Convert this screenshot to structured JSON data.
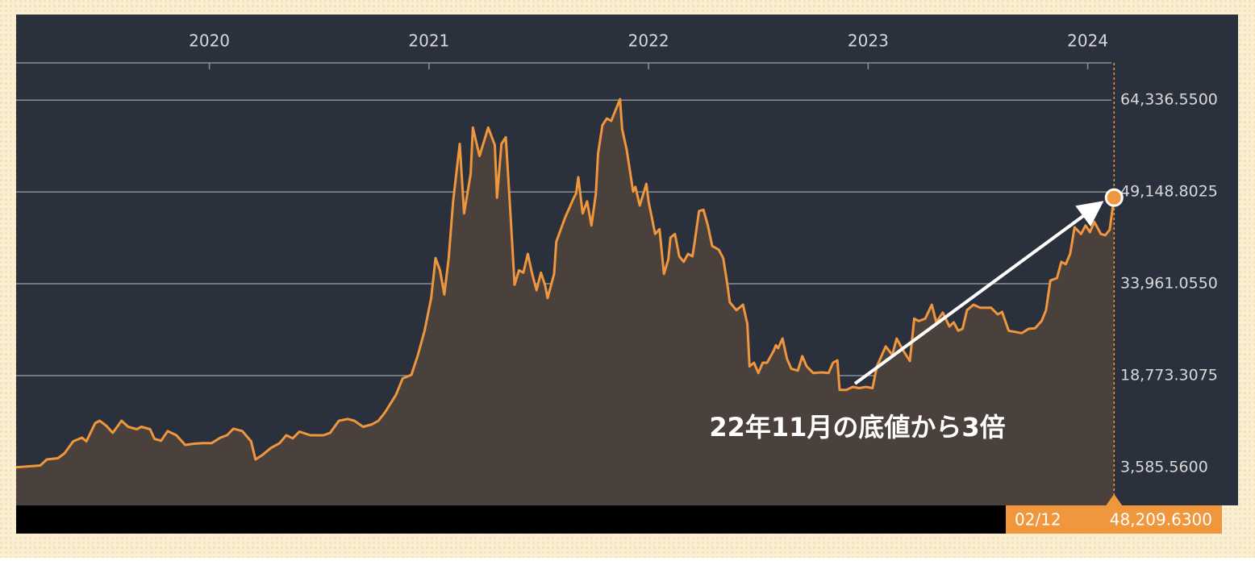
{
  "chart_data": {
    "type": "area",
    "annotation": "22年11月の底値から3倍",
    "color": "#f0963c",
    "fill_color": "#4a413c",
    "background": "#2b313c",
    "grid": true,
    "xlim": [
      2019.12,
      2024.13
    ],
    "xticks": [
      2020,
      2021,
      2022,
      2023,
      2024
    ],
    "ylim": [
      -2700,
      78500
    ],
    "yticks": [
      {
        "value": 3585.56,
        "label": "3,585.5600"
      },
      {
        "value": 18773.3075,
        "label": "18,773.3075"
      },
      {
        "value": 33961.055,
        "label": "33,961.0550"
      },
      {
        "value": 49148.8025,
        "label": "49,148.8025"
      },
      {
        "value": 64336.55,
        "label": "64,336.5500"
      }
    ],
    "last_point": {
      "date": "02/12",
      "value": 48209.63,
      "value_label": "48,209.6300"
    },
    "x": [
      2019.12,
      2019.23,
      2019.26,
      2019.31,
      2019.34,
      2019.38,
      2019.42,
      2019.44,
      2019.48,
      2019.5,
      2019.53,
      2019.56,
      2019.6,
      2019.63,
      2019.67,
      2019.69,
      2019.73,
      2019.75,
      2019.78,
      2019.81,
      2019.85,
      2019.89,
      2019.93,
      2019.97,
      2020.01,
      2020.05,
      2020.08,
      2020.11,
      2020.15,
      2020.19,
      2020.21,
      2020.24,
      2020.28,
      2020.32,
      2020.35,
      2020.38,
      2020.41,
      2020.46,
      2020.52,
      2020.55,
      2020.59,
      2020.63,
      2020.66,
      2020.7,
      2020.74,
      2020.77,
      2020.8,
      2020.85,
      2020.88,
      2020.92,
      2020.95,
      2020.98,
      2021.01,
      2021.03,
      2021.05,
      2021.07,
      2021.09,
      2021.11,
      2021.14,
      2021.16,
      2021.19,
      2021.2,
      2021.23,
      2021.27,
      2021.3,
      2021.31,
      2021.33,
      2021.35,
      2021.37,
      2021.39,
      2021.41,
      2021.43,
      2021.45,
      2021.47,
      2021.49,
      2021.51,
      2021.53,
      2021.54,
      2021.57,
      2021.58,
      2021.62,
      2021.66,
      2021.67,
      2021.68,
      2021.7,
      2021.72,
      2021.74,
      2021.76,
      2021.77,
      2021.79,
      2021.81,
      2021.83,
      2021.87,
      2021.88,
      2021.9,
      2021.93,
      2021.94,
      2021.96,
      2021.99,
      2022.0,
      2022.03,
      2022.05,
      2022.07,
      2022.09,
      2022.1,
      2022.12,
      2022.14,
      2022.16,
      2022.18,
      2022.2,
      2022.21,
      2022.23,
      2022.25,
      2022.27,
      2022.29,
      2022.32,
      2022.34,
      2022.36,
      2022.37,
      2022.4,
      2022.43,
      2022.45,
      2022.46,
      2022.48,
      2022.5,
      2022.52,
      2022.54,
      2022.57,
      2022.58,
      2022.59,
      2022.61,
      2022.63,
      2022.65,
      2022.68,
      2022.7,
      2022.72,
      2022.75,
      2022.79,
      2022.82,
      2022.84,
      2022.86,
      2022.87,
      2022.9,
      2022.93,
      2022.96,
      2022.99,
      2023.02,
      2023.04,
      2023.08,
      2023.11,
      2023.13,
      2023.16,
      2023.19,
      2023.21,
      2023.23,
      2023.26,
      2023.29,
      2023.31,
      2023.34,
      2023.37,
      2023.39,
      2023.41,
      2023.43,
      2023.45,
      2023.48,
      2023.51,
      2023.56,
      2023.59,
      2023.61,
      2023.64,
      2023.67,
      2023.7,
      2023.73,
      2023.76,
      2023.79,
      2023.81,
      2023.83,
      2023.86,
      2023.88,
      2023.9,
      2023.92,
      2023.94,
      2023.97,
      2023.99,
      2024.01,
      2024.03,
      2024.06,
      2024.08,
      2024.1,
      2024.12
    ],
    "series": [
      {
        "values": [
          3600,
          3900,
          4900,
          5100,
          5900,
          7900,
          8500,
          7900,
          10900,
          11300,
          10500,
          9300,
          11300,
          10300,
          9900,
          10300,
          9900,
          8300,
          8000,
          9600,
          8900,
          7300,
          7500,
          7600,
          7600,
          8500,
          8900,
          10000,
          9600,
          7900,
          4900,
          5600,
          6800,
          7600,
          8900,
          8400,
          9500,
          8900,
          8900,
          9300,
          11300,
          11600,
          11300,
          10300,
          10700,
          11300,
          12700,
          15600,
          18300,
          18900,
          22200,
          26200,
          31600,
          38200,
          36200,
          32200,
          38200,
          47600,
          57100,
          45600,
          52200,
          59800,
          55100,
          59800,
          56900,
          48200,
          57100,
          58200,
          46200,
          33800,
          36200,
          35800,
          38900,
          35600,
          32900,
          35800,
          33600,
          31600,
          35600,
          40900,
          44900,
          48200,
          48900,
          51600,
          45600,
          47600,
          43600,
          48900,
          55500,
          60200,
          61300,
          60900,
          64500,
          59500,
          56200,
          49200,
          50000,
          46900,
          50500,
          47600,
          42200,
          43000,
          35600,
          38000,
          41600,
          42200,
          38500,
          37600,
          38900,
          38500,
          40900,
          46000,
          46200,
          43600,
          40200,
          39600,
          38200,
          33600,
          30900,
          29600,
          30500,
          27300,
          20300,
          20900,
          19200,
          20900,
          20900,
          22900,
          23800,
          23300,
          24900,
          21600,
          19900,
          19600,
          22000,
          20300,
          19200,
          19300,
          19200,
          20900,
          21300,
          16400,
          16400,
          16900,
          16700,
          16900,
          16700,
          20300,
          23600,
          22200,
          24900,
          22900,
          21200,
          28200,
          27800,
          28200,
          30500,
          27600,
          29200,
          26900,
          27600,
          26200,
          26500,
          29600,
          30500,
          30000,
          30000,
          28900,
          29300,
          26200,
          26000,
          25800,
          26500,
          26600,
          27800,
          29600,
          34500,
          34900,
          37600,
          37200,
          38900,
          43300,
          42200,
          43600,
          42500,
          44200,
          42200,
          42000,
          42900,
          48209.63
        ]
      }
    ]
  }
}
